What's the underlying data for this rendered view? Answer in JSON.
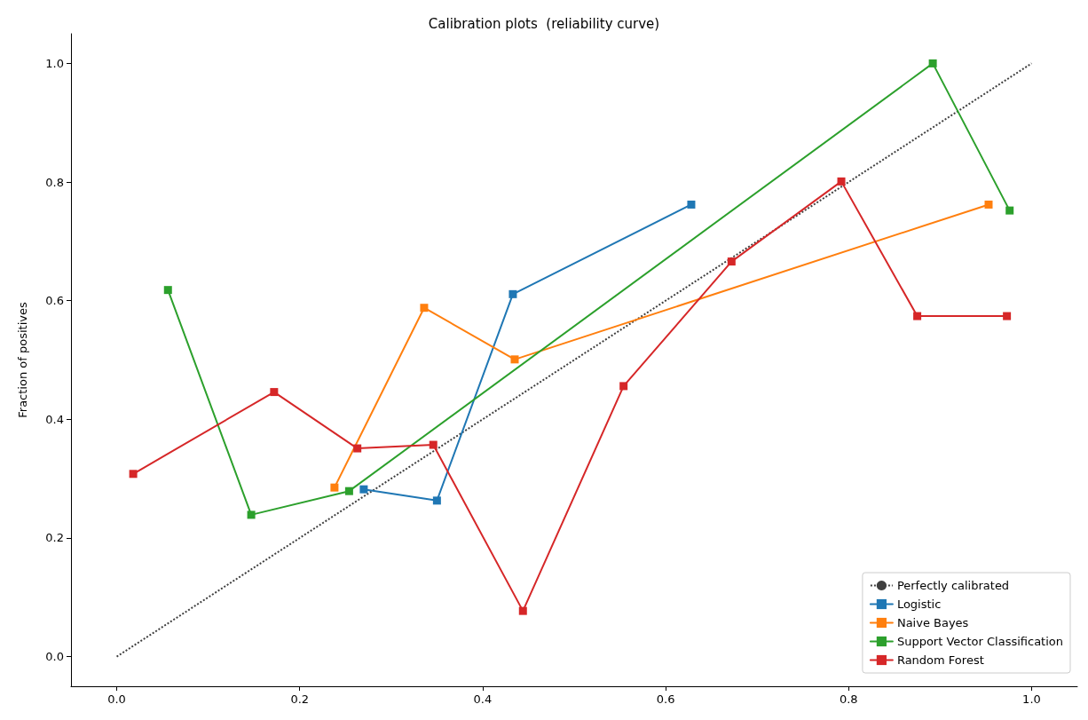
{
  "chart_data": {
    "type": "line",
    "title": "Calibration plots  (reliability curve)",
    "ylabel": "Fraction of positives",
    "xlim": [
      -0.05,
      1.05
    ],
    "ylim": [
      -0.05,
      1.05
    ],
    "xticks": [
      {
        "value": 0,
        "label": "0.0"
      },
      0.2,
      0.4,
      0.6,
      0.8,
      {
        "value": 1,
        "label": "1.0"
      }
    ],
    "yticks": [
      {
        "value": 0,
        "label": "0.0"
      },
      0.2,
      0.4,
      0.6,
      0.8,
      {
        "value": 1,
        "label": "1.0"
      }
    ],
    "grid": false,
    "legend": "bottom right",
    "marker": "square",
    "line_style": "solid",
    "series": [
      {
        "name": "Perfectly calibrated",
        "color": "#404040",
        "x": [
          0,
          1
        ],
        "values": [
          0,
          1
        ],
        "marker": "none",
        "line_style": "dotted"
      },
      {
        "name": "Logistic",
        "color": "#1f77b4",
        "x": [
          0.27,
          0.35,
          0.433,
          0.628
        ],
        "values": [
          0.282,
          0.263,
          0.611,
          0.762
        ]
      },
      {
        "name": "Naive Bayes",
        "color": "#ff7f0e",
        "x": [
          0.238,
          0.336,
          0.435,
          0.953
        ],
        "values": [
          0.285,
          0.588,
          0.501,
          0.762
        ]
      },
      {
        "name": "Support Vector Classification",
        "color": "#2ca02c",
        "x": [
          0.056,
          0.147,
          0.254,
          0.892,
          0.976
        ],
        "values": [
          0.618,
          0.239,
          0.279,
          1.0,
          0.752
        ]
      },
      {
        "name": "Random Forest",
        "color": "#d62728",
        "x": [
          0.018,
          0.172,
          0.263,
          0.346,
          0.444,
          0.554,
          0.672,
          0.792,
          0.875,
          0.973
        ],
        "values": [
          0.308,
          0.446,
          0.351,
          0.357,
          0.077,
          0.456,
          0.666,
          0.801,
          0.574,
          0.574
        ]
      }
    ]
  }
}
